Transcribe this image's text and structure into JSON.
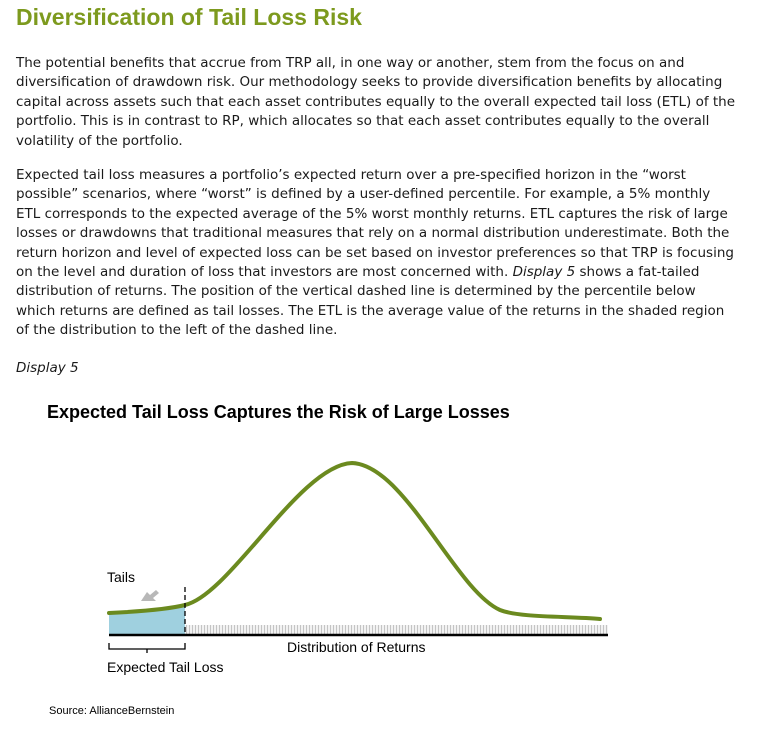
{
  "heading": "Diversification of Tail Loss Risk",
  "paragraphs": {
    "p1": "The potential benefits that accrue from TRP all, in one way or another, stem from the focus on and diversification of drawdown risk. Our methodology seeks to provide diversification benefits by allocating capital across assets such that each asset contributes equally to the overall expected tail loss (ETL) of the portfolio.  This is in contrast to RP, which allocates so that each asset contributes equally to the overall volatility of the portfolio.",
    "p2_part1": "Expected tail loss measures a portfolio’s expected return over a pre-specified horizon in the “worst possible” scenarios, where “worst” is defined by a user-defined percentile. For example, a 5% monthly ETL corresponds to the expected average of the 5% worst monthly returns. ETL captures the risk of large losses or drawdowns that traditional measures that rely on a normal distribution underestimate. Both the return horizon and level of expected loss can be set based on investor preferences so that TRP is focusing on the level and duration of loss that investors are most concerned with. ",
    "p2_ref": "Display 5",
    "p2_part2": " shows a fat-tailed distribution of returns. The position of the vertical dashed line is determined by the percentile below which returns are defined as tail losses. The ETL is the average value of the returns in the shaded region of the distribution to the left of the dashed line."
  },
  "display_label": "Display 5",
  "figure": {
    "title": "Expected Tail Loss Captures the Risk of Large Losses",
    "labels": {
      "tails": "Tails",
      "distribution": "Distribution of Returns",
      "etl": "Expected Tail Loss"
    },
    "colors": {
      "curve": "#6b8a1f",
      "tail_fill": "#9fd0df",
      "axis": "#000000",
      "arrow": "#b8b8b8"
    }
  },
  "source": "Source: AllianceBernstein"
}
